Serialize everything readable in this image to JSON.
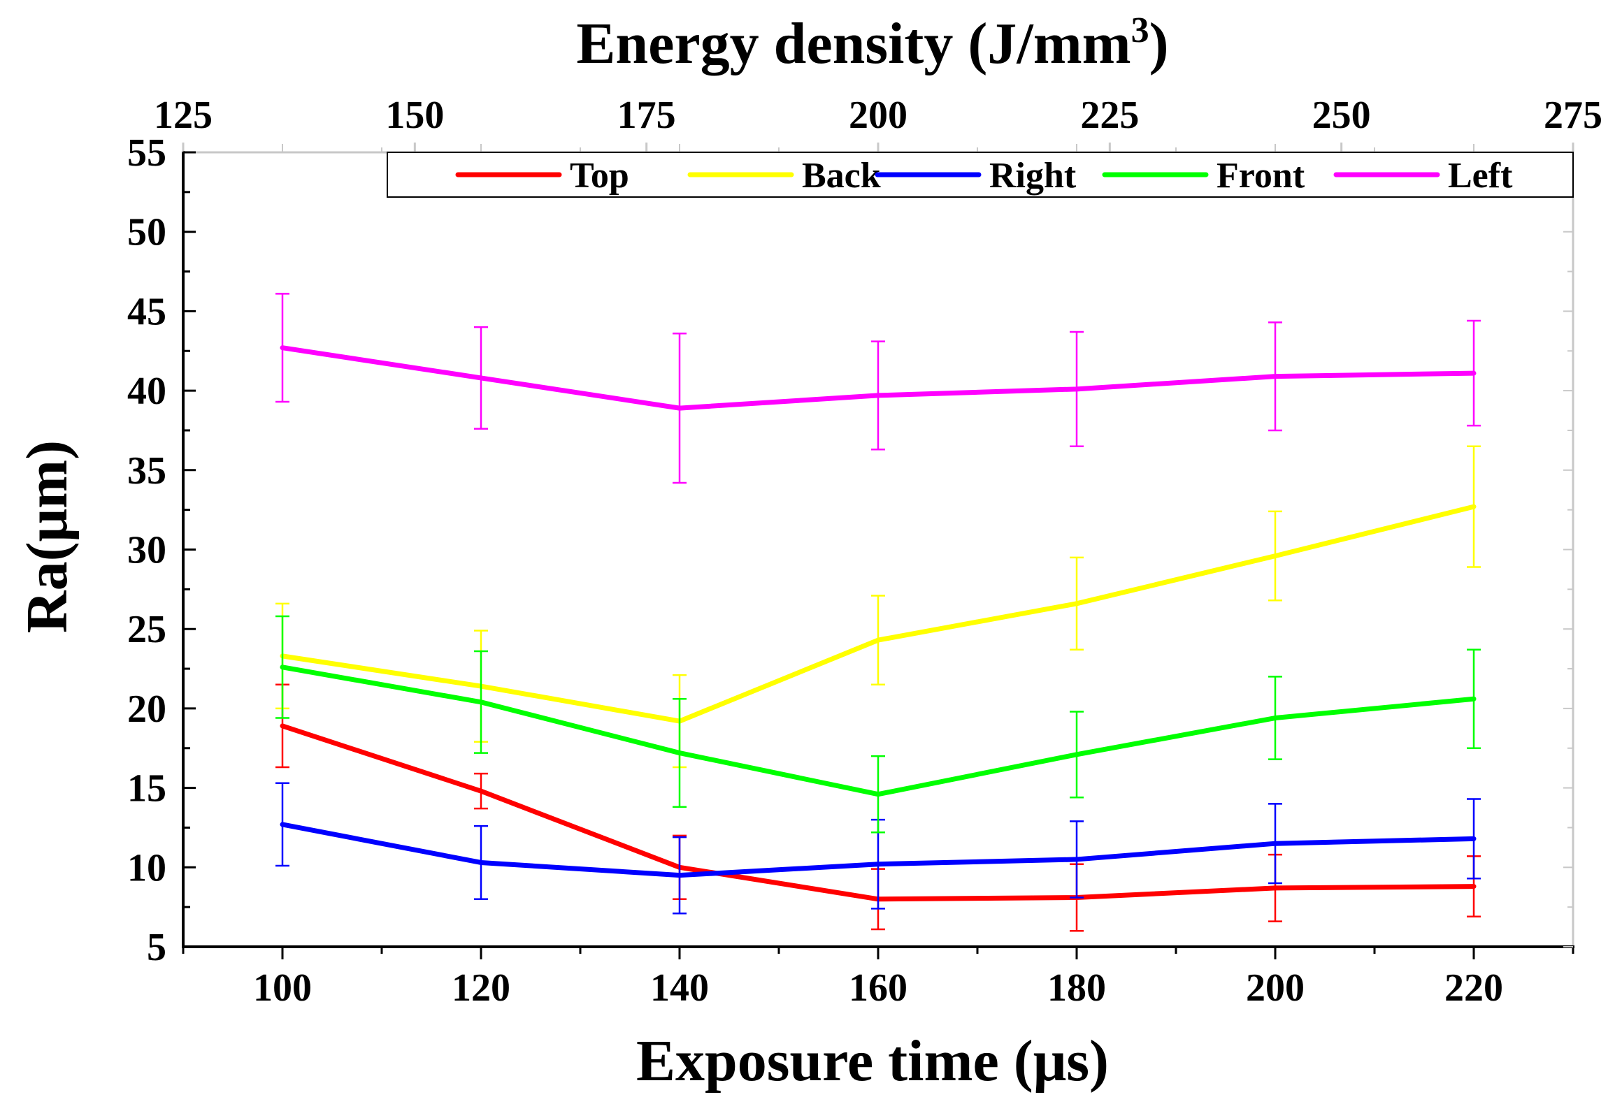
{
  "chart_data": {
    "type": "line",
    "x": [
      100,
      120,
      140,
      160,
      180,
      200,
      220
    ],
    "xlabel": "Exposure time (μs)",
    "x_top_label_main": "Energy density (J/mm",
    "x_top_label_sup": "3",
    "x_top_label_end": ")",
    "ylabel": "Ra(μm)",
    "xlim": [
      90,
      230
    ],
    "x_top_lim": [
      125,
      275
    ],
    "ylim": [
      5,
      55
    ],
    "x_ticks": [
      "100",
      "120",
      "140",
      "160",
      "180",
      "200",
      "220"
    ],
    "x_top_ticks": [
      "125",
      "150",
      "175",
      "200",
      "225",
      "250",
      "275"
    ],
    "y_ticks": [
      "5",
      "10",
      "15",
      "20",
      "25",
      "30",
      "35",
      "40",
      "45",
      "50",
      "55"
    ],
    "grid": false,
    "legend_position": "top",
    "series": [
      {
        "name": "Top",
        "color": "#ff0000",
        "values": [
          18.9,
          14.8,
          10.0,
          8.0,
          8.1,
          8.7,
          8.8
        ],
        "errors": [
          2.6,
          1.1,
          2.0,
          1.9,
          2.1,
          2.1,
          1.9
        ]
      },
      {
        "name": "Back",
        "color": "#ffff00",
        "values": [
          23.3,
          21.4,
          19.2,
          24.3,
          26.6,
          29.6,
          32.7
        ],
        "errors": [
          3.3,
          3.5,
          2.9,
          2.8,
          2.9,
          2.8,
          3.8
        ]
      },
      {
        "name": "Right",
        "color": "#0000ff",
        "values": [
          12.7,
          10.3,
          9.5,
          10.2,
          10.5,
          11.5,
          11.8
        ],
        "errors": [
          2.6,
          2.3,
          2.4,
          2.8,
          2.4,
          2.5,
          2.5
        ]
      },
      {
        "name": "Front",
        "color": "#00ff00",
        "values": [
          22.6,
          20.4,
          17.2,
          14.6,
          17.1,
          19.4,
          20.6
        ],
        "errors": [
          3.2,
          3.2,
          3.4,
          2.4,
          2.7,
          2.6,
          3.1
        ]
      },
      {
        "name": "Left",
        "color": "#ff00ff",
        "values": [
          42.7,
          40.8,
          38.9,
          39.7,
          40.1,
          40.9,
          41.1
        ],
        "errors": [
          3.4,
          3.2,
          4.7,
          3.4,
          3.6,
          3.4,
          3.3
        ]
      }
    ]
  }
}
